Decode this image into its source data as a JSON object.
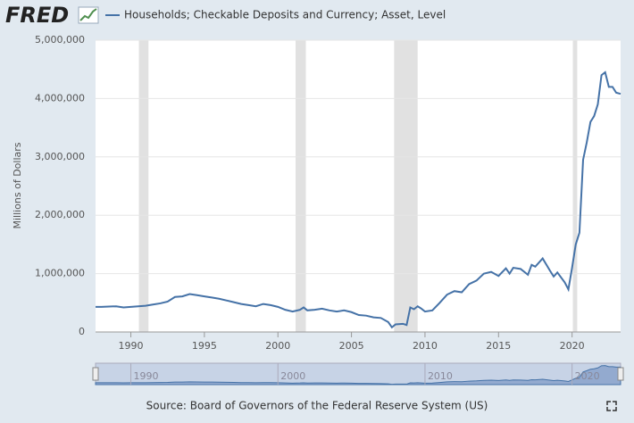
{
  "logo": "FRED",
  "chart_data": {
    "type": "line",
    "ylabel": "Millions of Dollars",
    "source": "Source: Board of Governors of the Federal Reserve System (US)",
    "xlim": [
      1987.6,
      2023.3
    ],
    "xticks": [
      1990,
      1995,
      2000,
      2005,
      2010,
      2015,
      2020
    ],
    "ylim": [
      0,
      5000000
    ],
    "yticks": [
      0,
      {
        "value": 1000000,
        "label": "1,000,000"
      },
      {
        "value": 2000000,
        "label": "2,000,000"
      },
      {
        "value": 3000000,
        "label": "3,000,000"
      },
      {
        "value": 4000000,
        "label": "4,000,000"
      },
      {
        "value": 5000000,
        "label": "5,000,000"
      }
    ],
    "grid": true,
    "recessions": [
      [
        1990.55,
        1991.2
      ],
      [
        2001.2,
        2001.9
      ],
      [
        2007.9,
        2009.5
      ],
      [
        2020.05,
        2020.35
      ]
    ],
    "navigator_ticks": [
      1990,
      2000,
      2010,
      2020
    ],
    "series": [
      {
        "name": "Households; Checkable Deposits and Currency; Asset, Level",
        "color": "#4572a7",
        "x": [
          1987.6,
          1988,
          1989,
          1989.5,
          1990,
          1990.5,
          1991,
          1991.5,
          1992,
          1992.5,
          1993,
          1993.5,
          1994,
          1994.5,
          1995,
          1995.5,
          1996,
          1996.5,
          1997,
          1997.5,
          1998,
          1998.5,
          1999,
          1999.5,
          2000,
          2000.5,
          2001,
          2001.5,
          2001.75,
          2002,
          2002.5,
          2003,
          2003.5,
          2004,
          2004.5,
          2005,
          2005.5,
          2006,
          2006.5,
          2007,
          2007.5,
          2007.75,
          2008,
          2008.5,
          2008.75,
          2009,
          2009.25,
          2009.5,
          2009.75,
          2010,
          2010.5,
          2011,
          2011.5,
          2012,
          2012.5,
          2013,
          2013.5,
          2014,
          2014.5,
          2015,
          2015.5,
          2015.75,
          2016,
          2016.5,
          2017,
          2017.25,
          2017.5,
          2018,
          2018.5,
          2018.75,
          2019,
          2019.5,
          2019.75,
          2020,
          2020.25,
          2020.5,
          2020.75,
          2021,
          2021.25,
          2021.5,
          2021.75,
          2022,
          2022.25,
          2022.5,
          2022.75,
          2023,
          2023.3
        ],
        "values": [
          430000,
          430000,
          440000,
          420000,
          430000,
          440000,
          450000,
          470000,
          490000,
          520000,
          600000,
          610000,
          650000,
          630000,
          610000,
          590000,
          570000,
          540000,
          510000,
          480000,
          460000,
          440000,
          480000,
          460000,
          430000,
          380000,
          350000,
          380000,
          420000,
          370000,
          380000,
          400000,
          370000,
          350000,
          370000,
          340000,
          290000,
          280000,
          250000,
          240000,
          170000,
          80000,
          130000,
          140000,
          120000,
          420000,
          390000,
          440000,
          400000,
          350000,
          370000,
          500000,
          640000,
          700000,
          680000,
          820000,
          880000,
          1000000,
          1030000,
          960000,
          1090000,
          1000000,
          1100000,
          1080000,
          980000,
          1150000,
          1120000,
          1260000,
          1050000,
          950000,
          1020000,
          850000,
          730000,
          1100000,
          1500000,
          1700000,
          2950000,
          3250000,
          3600000,
          3700000,
          3900000,
          4400000,
          4450000,
          4200000,
          4200000,
          4100000,
          4080000
        ]
      }
    ]
  }
}
